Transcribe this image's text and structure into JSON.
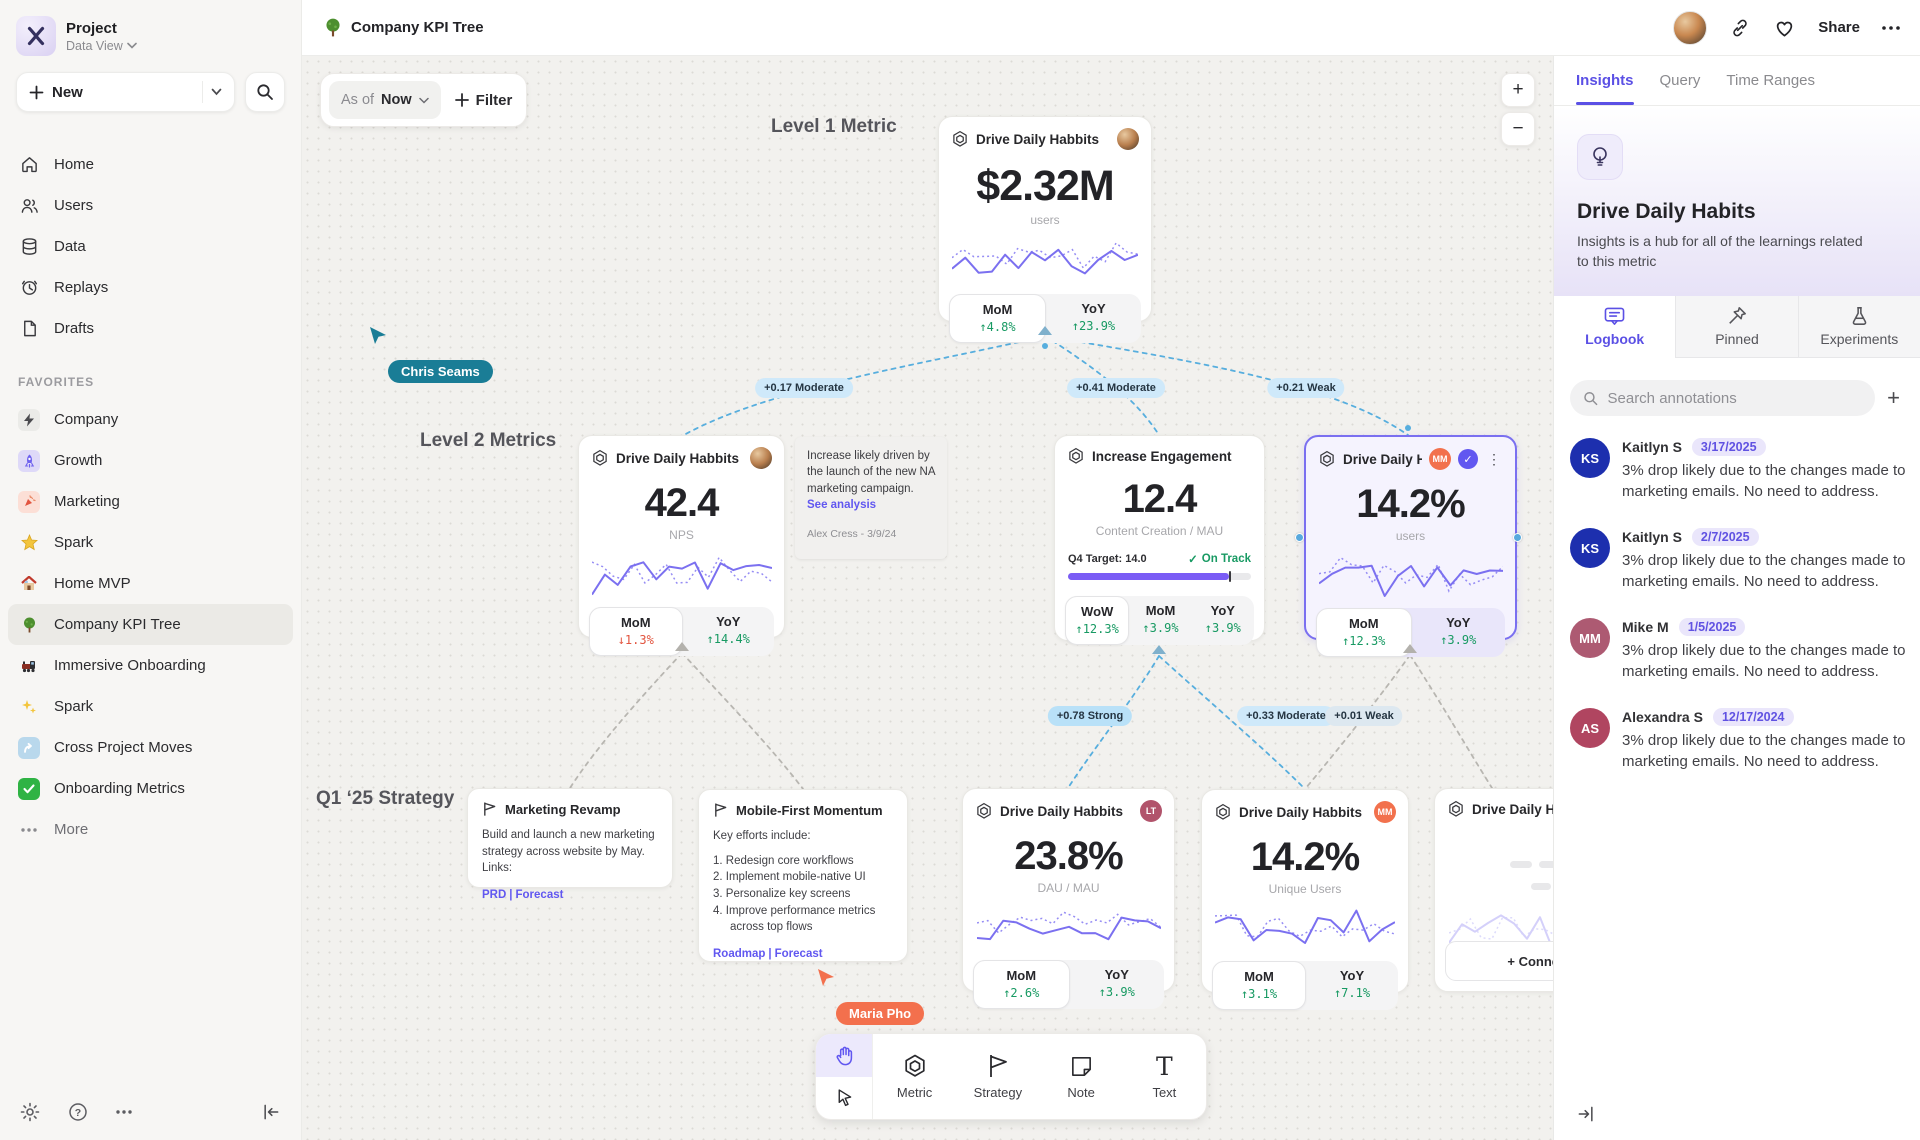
{
  "colors": {
    "accent_purple": "#6157f0",
    "spark_purple": "#7b70f0",
    "positive_green": "#189a63",
    "negative_red": "#e2543f",
    "cursor_teal": "#1a7d96",
    "cursor_orange": "#f3704d",
    "chip_blue": "#cfe9fa",
    "selected_border": "#7a6ff0",
    "badge_orange": "#f2714d",
    "badge_maroon": "#b1536b"
  },
  "sidebar": {
    "project_name": "Project",
    "project_view": "Data View",
    "new_label": "New",
    "nav": [
      {
        "label": "Home"
      },
      {
        "label": "Users"
      },
      {
        "label": "Data"
      },
      {
        "label": "Replays"
      },
      {
        "label": "Drafts"
      }
    ],
    "favorites_label": "FAVORITES",
    "favorites": [
      {
        "label": "Company"
      },
      {
        "label": "Growth"
      },
      {
        "label": "Marketing"
      },
      {
        "label": "Spark"
      },
      {
        "label": "Home MVP"
      },
      {
        "label": "Company KPI Tree"
      },
      {
        "label": "Immersive Onboarding"
      },
      {
        "label": "Spark"
      },
      {
        "label": "Cross Project Moves"
      },
      {
        "label": "Onboarding Metrics"
      }
    ],
    "more_label": "More"
  },
  "topbar": {
    "title": "Company KPI Tree",
    "share_label": "Share"
  },
  "controls": {
    "asof_label": "As of",
    "asof_value": "Now",
    "filter_label": "Filter",
    "zoom_in": "+",
    "zoom_out": "−"
  },
  "canvas": {
    "level1_label": "Level 1 Metric",
    "level2_label": "Level 2 Metrics",
    "strategy_label": "Q1 ‘25 Strategy",
    "cursors": {
      "c1": "Chris Seams",
      "c2": "Maria Pho"
    },
    "edges": {
      "e1": "+0.17 Moderate",
      "e2": "+0.41 Moderate",
      "e3": "+0.21 Weak",
      "e4": "+0.78 Strong",
      "e5": "+0.33 Moderate",
      "e6": "+0.01 Weak"
    },
    "card_l1": {
      "title": "Drive Daily Habbits",
      "value": "$2.32M",
      "unit": "users",
      "mom_label": "MoM",
      "mom": "↑4.8%",
      "yoy_label": "YoY",
      "yoy": "↑23.9%"
    },
    "card_nps": {
      "title": "Drive Daily Habbits",
      "value": "42.4",
      "unit": "NPS",
      "mom_label": "MoM",
      "mom": "↓1.3%",
      "yoy_label": "YoY",
      "yoy": "↑14.4%"
    },
    "note": {
      "text": "Increase likely driven by the launch of the new NA marketing campaign.",
      "link": "See analysis",
      "author": "Alex Cress - 3/9/24"
    },
    "card_engagement": {
      "title": "Increase Engagement",
      "value": "12.4",
      "unit": "Content Creation / MAU",
      "target_label": "Q4 Target: 14.0",
      "status": "On Track",
      "check": "✓",
      "wow_label": "WoW",
      "wow": "↑12.3%",
      "mom_label": "MoM",
      "mom": "↑3.9%",
      "yoy_label": "YoY",
      "yoy": "↑3.9%"
    },
    "card_selected": {
      "title": "Drive Daily Habb..",
      "badge": "MM",
      "check": "✓",
      "kebab": "⋮",
      "value": "14.2%",
      "unit": "users",
      "mom_label": "MoM",
      "mom": "↑12.3%",
      "yoy_label": "YoY",
      "yoy": "↑3.9%"
    },
    "strategy_revamp": {
      "title": "Marketing Revamp",
      "body": "Build and launch a new marketing strategy across website by May. Links:",
      "link1": "PRD",
      "sep": "|",
      "link2": "Forecast"
    },
    "strategy_mobile": {
      "title": "Mobile-First Momentum",
      "intro": "Key efforts include:",
      "items": [
        "1. Redesign core workflows",
        "2. Implement mobile-native UI",
        "3. Personalize key screens",
        "4. Improve performance metrics across top flows"
      ],
      "link1": "Roadmap",
      "sep": "|",
      "link2": "Forecast"
    },
    "card_dau": {
      "title": "Drive Daily Habbits",
      "badge": "LT",
      "value": "23.8%",
      "unit": "DAU / MAU",
      "mom_label": "MoM",
      "mom": "↑2.6%",
      "yoy_label": "YoY",
      "yoy": "↑3.9%"
    },
    "card_unique": {
      "title": "Drive Daily Habbits",
      "badge": "MM",
      "value": "14.2%",
      "unit": "Unique Users",
      "mom_label": "MoM",
      "mom": "↑3.1%",
      "yoy_label": "YoY",
      "yoy": "↑7.1%"
    },
    "card_partial": {
      "title": "Drive Daily Hab",
      "connect_label": "+ Connect"
    }
  },
  "tools": {
    "metric": "Metric",
    "strategy": "Strategy",
    "note": "Note",
    "text": "Text"
  },
  "panel": {
    "tabs": [
      "Insights",
      "Query",
      "Time Ranges"
    ],
    "metric_title": "Drive Daily Habits",
    "metric_desc": "Insights is a hub for all of the learnings related to this metric",
    "subtabs": [
      "Logbook",
      "Pinned",
      "Experiments"
    ],
    "search_placeholder": "Search annotations",
    "annotations": [
      {
        "initials": "KS",
        "name": "Kaitlyn S",
        "date": "3/17/2025",
        "text": "3% drop likely due to the changes made to marketing emails. No need to address.",
        "color": "#1d2fae"
      },
      {
        "initials": "KS",
        "name": "Kaitlyn S",
        "date": "2/7/2025",
        "text": "3% drop likely due to the changes made to marketing emails. No need to address.",
        "color": "#1d2fae"
      },
      {
        "initials": "MM",
        "name": "Mike M",
        "date": "1/5/2025",
        "text": "3% drop likely due to the changes made to marketing emails. No need to address.",
        "color": "#ad5a72"
      },
      {
        "initials": "AS",
        "name": "Alexandra S",
        "date": "12/17/2024",
        "text": "3% drop likely due to the changes made to marketing emails. No need to address.",
        "color": "#b04560"
      }
    ]
  }
}
